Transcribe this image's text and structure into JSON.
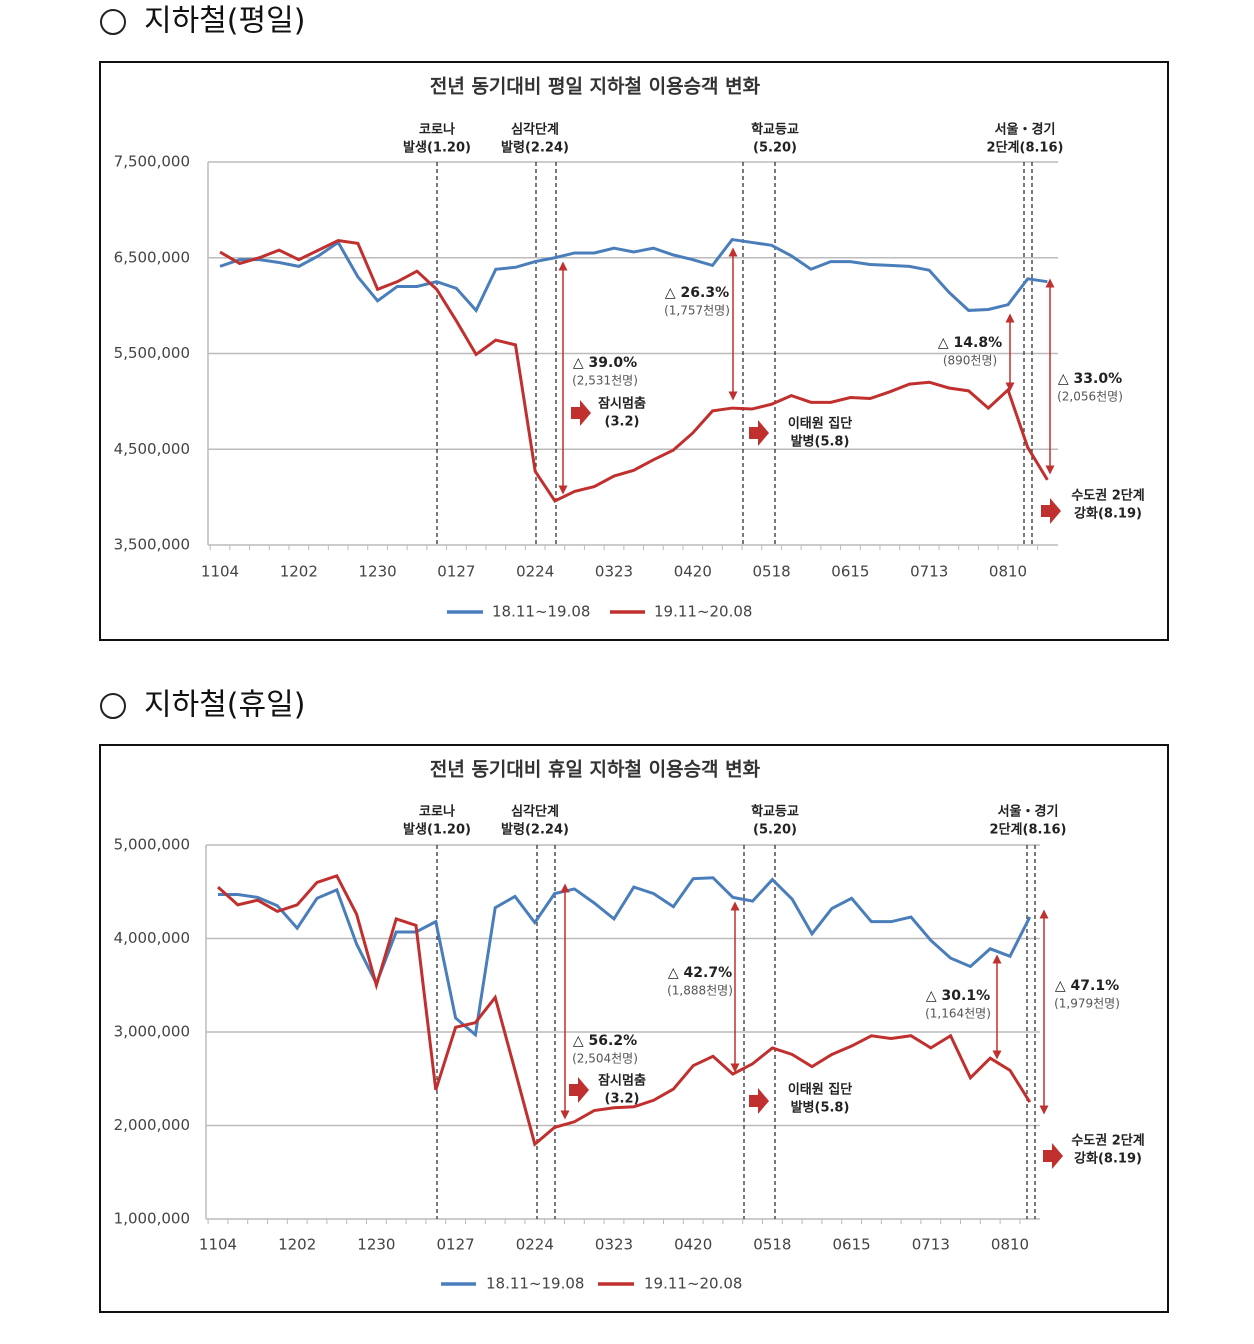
{
  "headings": [
    "지하철(평일)",
    "지하철(휴일)"
  ],
  "chart_data": [
    {
      "type": "line",
      "title": "전년 동기대비 평일 지하철 이용승객 변화",
      "categories": [
        "1104",
        null,
        null,
        null,
        "1202",
        null,
        null,
        null,
        "1230",
        null,
        null,
        null,
        "0127",
        null,
        null,
        null,
        "0224",
        null,
        null,
        null,
        "0323",
        null,
        null,
        null,
        "0420",
        null,
        null,
        null,
        "0518",
        null,
        null,
        null,
        "0615",
        null,
        null,
        null,
        "0713",
        null,
        null,
        null,
        "0810",
        null,
        null
      ],
      "series": [
        {
          "name": "18.11~19.08",
          "color": "#4a7ebb",
          "values": [
            6410000,
            6480000,
            6480000,
            6450000,
            6410000,
            6520000,
            6660000,
            6300000,
            6050000,
            6200000,
            6200000,
            6250000,
            6180000,
            5950000,
            6380000,
            6400000,
            6460000,
            6500000,
            6550000,
            6550000,
            6600000,
            6560000,
            6600000,
            6530000,
            6480000,
            6420000,
            6690000,
            6660000,
            6630000,
            6520000,
            6380000,
            6460000,
            6460000,
            6430000,
            6420000,
            6410000,
            6370000,
            6140000,
            5950000,
            5960000,
            6010000,
            6280000,
            6250000
          ]
        },
        {
          "name": "19.11~20.08",
          "color": "#c0302e",
          "values": [
            6560000,
            6440000,
            6500000,
            6580000,
            6480000,
            6580000,
            6680000,
            6650000,
            6170000,
            6250000,
            6360000,
            6170000,
            5840000,
            5490000,
            5640000,
            5590000,
            4270000,
            3960000,
            4060000,
            4110000,
            4220000,
            4280000,
            4390000,
            4490000,
            4670000,
            4900000,
            4930000,
            4920000,
            4970000,
            5060000,
            4990000,
            4990000,
            5040000,
            5030000,
            5100000,
            5180000,
            5200000,
            5140000,
            5110000,
            4930000,
            5120000,
            4520000,
            4180000
          ]
        }
      ],
      "ylim": [
        3500000,
        7500000
      ],
      "yticks": [
        {
          "value": 3500000,
          "label": "3,500,000"
        },
        {
          "value": 4500000,
          "label": "4,500,000"
        },
        {
          "value": 5500000,
          "label": "5,500,000"
        },
        {
          "value": 6500000,
          "label": "6,500,000"
        },
        {
          "value": 7500000,
          "label": "7,500,000"
        }
      ],
      "grid": true,
      "events": [
        [
          "코로나",
          "발생(1.20)"
        ],
        [
          "심각단계",
          "발령(2.24)"
        ],
        [
          "학교등교",
          "(5.20)"
        ],
        [
          "서울・경기",
          "2단계(8.16)"
        ]
      ],
      "changes": [
        {
          "pct": "△ 39.0%",
          "count": "(2,531천명)"
        },
        {
          "pct": "△ 26.3%",
          "count": "(1,757천명)"
        },
        {
          "pct": "△ 14.8%",
          "count": "(890천명)"
        },
        {
          "pct": "△ 33.0%",
          "count": "(2,056천명)"
        }
      ],
      "notes": [
        [
          "잠시멈춤",
          "(3.2)"
        ],
        [
          "이태원 집단",
          "발병(5.8)"
        ],
        [
          "수도권 2단계",
          "강화(8.19)"
        ]
      ]
    },
    {
      "type": "line",
      "title": "전년 동기대비 휴일 지하철 이용승객 변화",
      "categories": [
        "1104",
        null,
        null,
        null,
        "1202",
        null,
        null,
        null,
        "1230",
        null,
        null,
        null,
        "0127",
        null,
        null,
        null,
        "0224",
        null,
        null,
        null,
        "0323",
        null,
        null,
        null,
        "0420",
        null,
        null,
        null,
        "0518",
        null,
        null,
        null,
        "0615",
        null,
        null,
        null,
        "0713",
        null,
        null,
        null,
        "0810",
        null
      ],
      "series": [
        {
          "name": "18.11~19.08",
          "color": "#4a7ebb",
          "values": [
            4470000,
            4470000,
            4440000,
            4350000,
            4110000,
            4430000,
            4520000,
            3940000,
            3520000,
            4070000,
            4070000,
            4180000,
            3150000,
            2970000,
            4330000,
            4450000,
            4170000,
            4480000,
            4530000,
            4380000,
            4210000,
            4550000,
            4480000,
            4340000,
            4640000,
            4650000,
            4440000,
            4400000,
            4630000,
            4420000,
            4050000,
            4320000,
            4430000,
            4180000,
            4180000,
            4230000,
            3980000,
            3790000,
            3700000,
            3890000,
            3810000,
            4230000
          ]
        },
        {
          "name": "19.11~20.08",
          "color": "#c0302e",
          "values": [
            4550000,
            4360000,
            4410000,
            4290000,
            4360000,
            4600000,
            4670000,
            4260000,
            3500000,
            4210000,
            4140000,
            2380000,
            3050000,
            3100000,
            3370000,
            2590000,
            1800000,
            1980000,
            2040000,
            2160000,
            2190000,
            2200000,
            2270000,
            2390000,
            2640000,
            2740000,
            2550000,
            2660000,
            2830000,
            2760000,
            2630000,
            2760000,
            2850000,
            2960000,
            2930000,
            2960000,
            2830000,
            2960000,
            2510000,
            2720000,
            2590000,
            2250000
          ]
        }
      ],
      "ylim": [
        1000000,
        5000000
      ],
      "yticks": [
        {
          "value": 1000000,
          "label": "1,000,000"
        },
        {
          "value": 2000000,
          "label": "2,000,000"
        },
        {
          "value": 3000000,
          "label": "3,000,000"
        },
        {
          "value": 4000000,
          "label": "4,000,000"
        },
        {
          "value": 5000000,
          "label": "5,000,000"
        }
      ],
      "grid": true,
      "events": [
        [
          "코로나",
          "발생(1.20)"
        ],
        [
          "심각단계",
          "발령(2.24)"
        ],
        [
          "학교등교",
          "(5.20)"
        ],
        [
          "서울・경기",
          "2단계(8.16)"
        ]
      ],
      "changes": [
        {
          "pct": "△ 56.2%",
          "count": "(2,504천명)"
        },
        {
          "pct": "△ 42.7%",
          "count": "(1,888천명)"
        },
        {
          "pct": "△ 30.1%",
          "count": "(1,164천명)"
        },
        {
          "pct": "△ 47.1%",
          "count": "(1,979천명)"
        }
      ],
      "notes": [
        [
          "잠시멈춤",
          "(3.2)"
        ],
        [
          "이태원 집단",
          "발병(5.8)"
        ],
        [
          "수도권 2단계",
          "강화(8.19)"
        ]
      ]
    }
  ]
}
